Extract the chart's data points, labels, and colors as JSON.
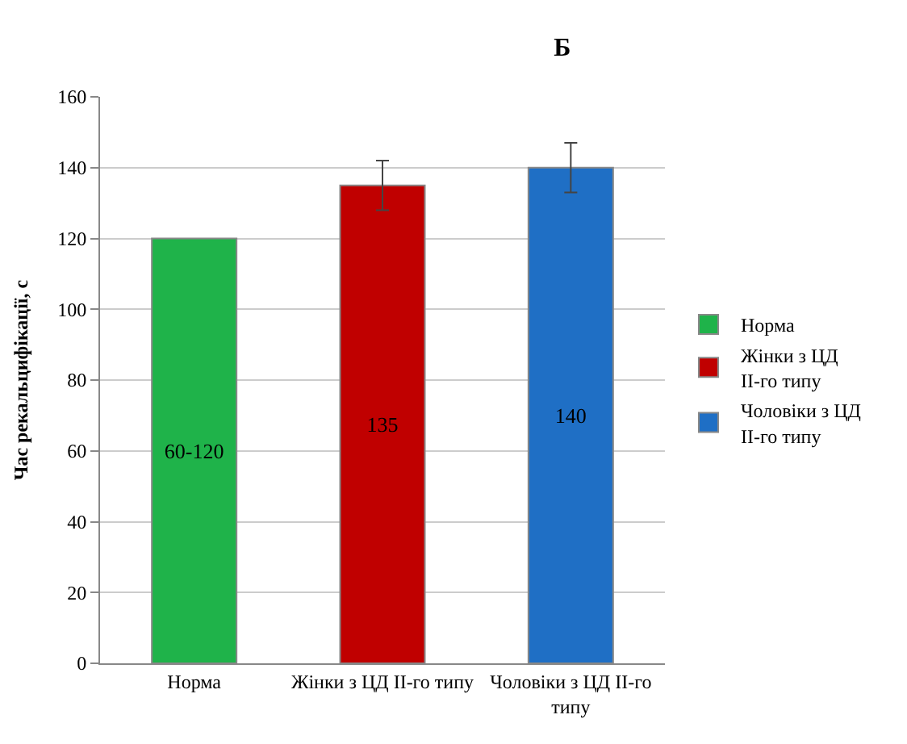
{
  "chart_data": {
    "type": "bar",
    "title": "Б",
    "ylabel": "Час рекальцифікації, с",
    "categories": [
      "Норма",
      "Жінки з ЦД ІІ-го типу",
      "Чоловіки з ЦД ІІ-го типу"
    ],
    "series": [
      {
        "name": "Норма",
        "color": "#1fb34a",
        "values": [
          120,
          null,
          null
        ],
        "value_labels": [
          "60-120",
          null,
          null
        ]
      },
      {
        "name": "Жінки з ЦД ІІ-го типу",
        "color": "#c00000",
        "values": [
          null,
          135,
          null
        ],
        "errors": [
          null,
          7,
          null
        ],
        "value_labels": [
          null,
          "135",
          null
        ]
      },
      {
        "name": "Чоловіки з ЦД ІІ-го типу",
        "color": "#1f6fc5",
        "values": [
          null,
          null,
          140
        ],
        "errors": [
          null,
          null,
          7
        ],
        "value_labels": [
          null,
          null,
          "140"
        ]
      }
    ],
    "ylim": [
      0,
      160
    ],
    "yticks": [
      0,
      20,
      40,
      60,
      80,
      100,
      120,
      140,
      160
    ],
    "grid": "y",
    "legend": "right"
  }
}
